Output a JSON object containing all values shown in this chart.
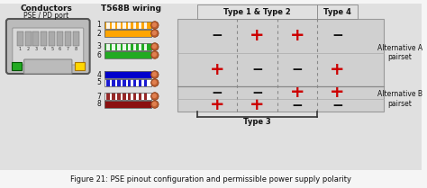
{
  "bg_color": "#e8e8e8",
  "white": "#ffffff",
  "title": "Figure 21: PSE pinout configuration and permissible power supply polarity",
  "title_fontsize": 6.0,
  "conductors_label": "Conductors",
  "pse_label": "PSE / PD port",
  "t568b_label": "T568B wiring",
  "type12_label": "Type 1 & Type 2",
  "type4_label": "Type 4",
  "type3_label": "Type 3",
  "altA_label": "Alternative A\npairset",
  "altB_label": "Alternative B\npairset",
  "red": "#CC0000",
  "dark_minus": "#111111",
  "panel_bg": "#d8d8d8",
  "wire_rows": [
    {
      "pin": 1,
      "main": "#FFA500",
      "stripe": "#ffffff",
      "stripe_color": "#FFA500"
    },
    {
      "pin": 2,
      "main": "#FFA500",
      "stripe": null,
      "stripe_color": null
    },
    {
      "pin": 3,
      "main": "#22aa22",
      "stripe": "#ffffff",
      "stripe_color": "#22aa22"
    },
    {
      "pin": 6,
      "main": "#22aa22",
      "stripe": null,
      "stripe_color": null
    },
    {
      "pin": 4,
      "main": "#0000CC",
      "stripe": null,
      "stripe_color": null
    },
    {
      "pin": 5,
      "main": "#ffffff",
      "stripe": "#0000CC",
      "stripe_color": "#ffffff"
    },
    {
      "pin": 7,
      "main": "#ffffff",
      "stripe": "#8B1010",
      "stripe_color": "#ffffff"
    },
    {
      "pin": 8,
      "main": "#8B1010",
      "stripe": null,
      "stripe_color": null
    }
  ],
  "polarity_grid": [
    [
      "-",
      "+",
      "+",
      "-"
    ],
    [
      "+",
      "-",
      "-",
      "+"
    ],
    [
      "-",
      "-",
      "+",
      "+"
    ],
    [
      "+",
      "+",
      "-",
      "-"
    ]
  ]
}
